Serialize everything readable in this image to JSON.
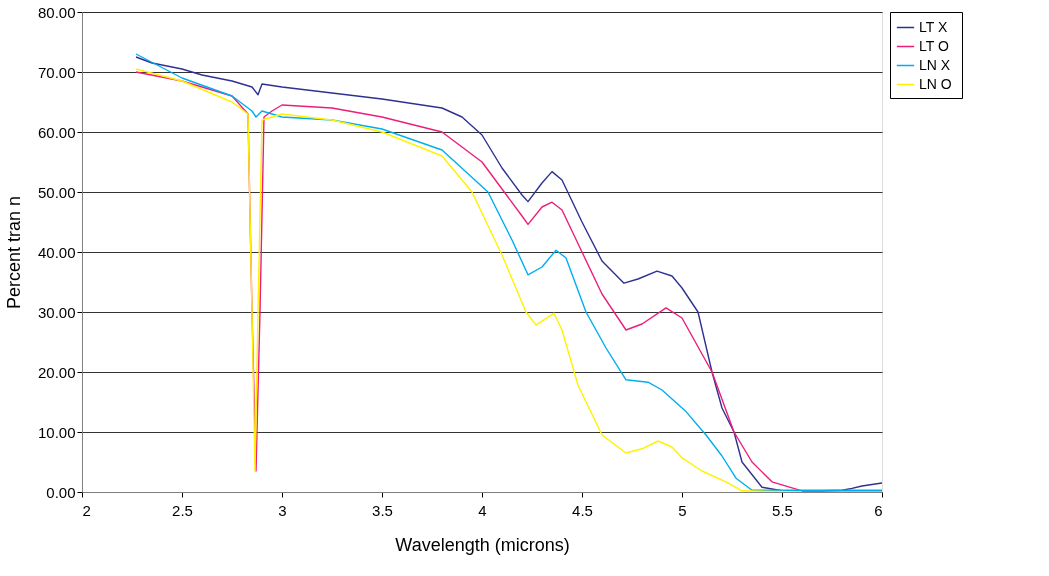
{
  "chart_data": {
    "type": "line",
    "xlabel": "Wavelength (microns)",
    "ylabel": "Percent tran n",
    "xlim": [
      2,
      6
    ],
    "ylim": [
      0,
      80
    ],
    "xticks": [
      {
        "value": 2,
        "label": "2"
      },
      2.5,
      {
        "value": 3,
        "label": "3"
      },
      3.5,
      {
        "value": 4,
        "label": "4"
      },
      4.5,
      {
        "value": 5,
        "label": "5"
      },
      5.5,
      {
        "value": 6,
        "label": "6"
      }
    ],
    "yticks": [
      {
        "value": 0,
        "label": "0.00"
      },
      {
        "value": 10,
        "label": "10.00"
      },
      {
        "value": 20,
        "label": "20.00"
      },
      {
        "value": 30,
        "label": "30.00"
      },
      {
        "value": 40,
        "label": "40.00"
      },
      {
        "value": 50,
        "label": "50.00"
      },
      {
        "value": 60,
        "label": "60.00"
      },
      {
        "value": 70,
        "label": "70.00"
      },
      {
        "value": 80,
        "label": "80.00"
      }
    ],
    "grid": "y",
    "legend": "right",
    "series": [
      {
        "name": "LT  X",
        "color": "#2e3192",
        "x": [
          2.27,
          2.35,
          2.5,
          2.6,
          2.75,
          2.85,
          2.88,
          2.9,
          3.0,
          3.25,
          3.5,
          3.8,
          3.9,
          4.0,
          4.1,
          4.2,
          4.23,
          4.3,
          4.35,
          4.4,
          4.5,
          4.6,
          4.71,
          4.78,
          4.875,
          4.95,
          5.0,
          5.08,
          5.15,
          5.2,
          5.26,
          5.3,
          5.4,
          5.5,
          5.7,
          5.8,
          5.85,
          5.9,
          6.0
        ],
        "values": [
          72.5,
          71.5,
          70.5,
          69.5,
          68.5,
          67.5,
          66.2,
          68,
          67.5,
          66.5,
          65.5,
          64,
          62.5,
          59.5,
          54,
          49.5,
          48.4,
          51.5,
          53.4,
          52,
          45,
          38.5,
          34.8,
          35.5,
          36.8,
          36,
          34,
          30,
          20,
          14,
          10,
          5,
          0.8,
          0.2,
          0.2,
          0.3,
          0.6,
          1,
          1.5
        ]
      },
      {
        "name": "LT  O",
        "color": "#ec1e79",
        "x": [
          2.27,
          2.5,
          2.75,
          2.83,
          2.85,
          2.87,
          2.89,
          2.91,
          2.95,
          3.0,
          3.25,
          3.5,
          3.8,
          4.0,
          4.1,
          4.2,
          4.23,
          4.3,
          4.35,
          4.4,
          4.5,
          4.6,
          4.72,
          4.8,
          4.92,
          5.0,
          5.15,
          5.26,
          5.35,
          5.45,
          5.6,
          5.8,
          6.0
        ],
        "values": [
          70,
          68.5,
          66,
          63,
          30,
          3.5,
          30,
          62.5,
          63.5,
          64.5,
          64,
          62.5,
          60,
          55,
          50.5,
          46,
          44.6,
          47.5,
          48.3,
          47,
          40,
          33,
          27,
          28,
          30.7,
          29,
          20,
          10,
          5,
          1.7,
          0.2,
          0.2,
          0.2
        ]
      },
      {
        "name": "LN  X",
        "color": "#00aeef",
        "x": [
          2.27,
          2.5,
          2.75,
          2.85,
          2.87,
          2.9,
          3.0,
          3.25,
          3.5,
          3.8,
          4.03,
          4.15,
          4.23,
          4.3,
          4.37,
          4.42,
          4.52,
          4.62,
          4.72,
          4.83,
          4.9,
          5.02,
          5.12,
          5.2,
          5.27,
          5.35,
          5.6,
          5.8,
          6.0
        ],
        "values": [
          73,
          69,
          66,
          63.5,
          62.5,
          63.5,
          62.5,
          62,
          60.5,
          57,
          50,
          42,
          36.2,
          37.5,
          40.3,
          39,
          30,
          24,
          18.7,
          18.3,
          17,
          13.4,
          9.5,
          6,
          2.3,
          0.3,
          0.3,
          0.3,
          0.3
        ]
      },
      {
        "name": "LN  O",
        "color": "#fff200",
        "x": [
          2.27,
          2.5,
          2.75,
          2.83,
          2.85,
          2.865,
          2.88,
          2.9,
          3.0,
          3.25,
          3.5,
          3.8,
          3.95,
          4.1,
          4.22,
          4.27,
          4.36,
          4.4,
          4.48,
          4.6,
          4.72,
          4.8,
          4.88,
          4.95,
          5.0,
          5.1,
          5.22,
          5.3,
          5.6
        ],
        "values": [
          70.5,
          68.5,
          65,
          63,
          30,
          3.5,
          30,
          62,
          63,
          62,
          60,
          56,
          50,
          39.5,
          30,
          27.8,
          29.8,
          27,
          17.8,
          9.5,
          6.5,
          7.2,
          8.5,
          7.5,
          5.7,
          3.5,
          1.7,
          0.2,
          0
        ]
      }
    ]
  }
}
